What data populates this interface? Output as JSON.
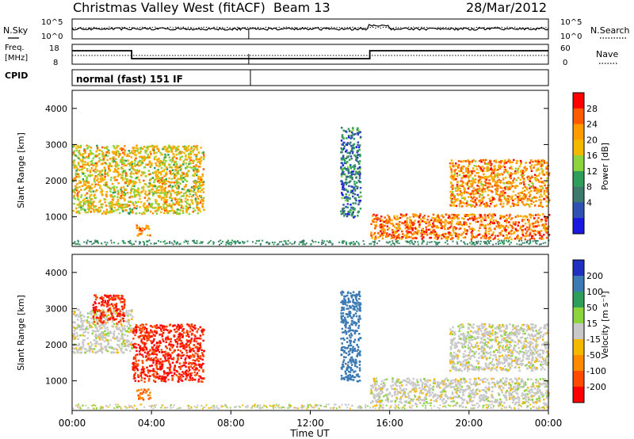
{
  "header": {
    "station": "Christmas Valley West (fitACF)",
    "beam": "Beam 13",
    "date": "28/Mar/2012"
  },
  "noise_panel": {
    "left_label": "N.Sky",
    "left_ticks": [
      "10^5",
      "10^0"
    ],
    "right_label": "N.Search",
    "right_ticks": [
      "10^5",
      "10^0"
    ],
    "legend_solid": "solid line",
    "legend_dotted": "dotted line"
  },
  "freq_panel": {
    "left_label_1": "Freq.",
    "left_label_2": "[MHz]",
    "left_ticks": [
      "18",
      "8"
    ],
    "right_label": "Nave",
    "right_ticks": [
      "60",
      "0"
    ]
  },
  "cpid": {
    "label": "CPID",
    "value": "normal (fast) 151 IF"
  },
  "power_colorbar": {
    "label": "Power [dB]",
    "ticks": [
      "28",
      "24",
      "20",
      "16",
      "12",
      "8",
      "4"
    ],
    "colors": [
      "#ff0000",
      "#ff5a00",
      "#ff9a00",
      "#f5b800",
      "#8cd43c",
      "#2e9e5a",
      "#3c7a6e",
      "#3050b4",
      "#1818e0"
    ]
  },
  "velocity_colorbar": {
    "label": "Velocity [m s⁻¹]",
    "ticks": [
      "200",
      "100",
      "50",
      "15",
      "-15",
      "-50",
      "-100",
      "-200"
    ],
    "colors": [
      "#2030c0",
      "#3c7ab4",
      "#2e9e5a",
      "#8cd43c",
      "#c8c8c8",
      "#f5b800",
      "#ff8a00",
      "#ff4a00",
      "#ff0000"
    ]
  },
  "x_axis": {
    "label": "Time UT",
    "ticks": [
      "00:00",
      "04:00",
      "08:00",
      "12:00",
      "16:00",
      "20:00",
      "00:00"
    ]
  },
  "chart_data": [
    {
      "type": "heatmap",
      "title": "",
      "xlabel": "Time UT",
      "ylabel": "Slant Range [km]",
      "x_range_hours": [
        0,
        24
      ],
      "ylim": [
        180,
        4500
      ],
      "yticks": [
        1000,
        2000,
        3000,
        4000
      ],
      "color_quantity": "Power [dB]",
      "regions": [
        {
          "t_start": 0.0,
          "t_end": 6.6,
          "range_start": 1100,
          "range_end": 3000,
          "power_db": 20
        },
        {
          "t_start": 3.2,
          "t_end": 3.9,
          "range_start": 500,
          "range_end": 800,
          "power_db": 24
        },
        {
          "t_start": 13.5,
          "t_end": 14.5,
          "range_start": 1000,
          "range_end": 3500,
          "power_db": 8
        },
        {
          "t_start": 15.0,
          "t_end": 24.0,
          "range_start": 400,
          "range_end": 1100,
          "power_db": 26
        },
        {
          "t_start": 19.0,
          "t_end": 24.0,
          "range_start": 1300,
          "range_end": 2600,
          "power_db": 24
        }
      ]
    },
    {
      "type": "heatmap",
      "title": "",
      "xlabel": "Time UT",
      "ylabel": "Slant Range [km]",
      "x_range_hours": [
        0,
        24
      ],
      "ylim": [
        180,
        4500
      ],
      "yticks": [
        1000,
        2000,
        3000,
        4000
      ],
      "color_quantity": "Velocity [m s-1]",
      "regions": [
        {
          "t_start": 0.0,
          "t_end": 3.0,
          "range_start": 1800,
          "range_end": 3000,
          "velocity": 0
        },
        {
          "t_start": 1.0,
          "t_end": 2.6,
          "range_start": 2600,
          "range_end": 3400,
          "velocity": -200
        },
        {
          "t_start": 3.0,
          "t_end": 6.6,
          "range_start": 1000,
          "range_end": 2600,
          "velocity": -200
        },
        {
          "t_start": 3.2,
          "t_end": 3.9,
          "range_start": 500,
          "range_end": 800,
          "velocity": -100
        },
        {
          "t_start": 13.5,
          "t_end": 14.5,
          "range_start": 1000,
          "range_end": 3500,
          "velocity": 150
        },
        {
          "t_start": 15.0,
          "t_end": 24.0,
          "range_start": 400,
          "range_end": 1100,
          "velocity": 0
        },
        {
          "t_start": 19.0,
          "t_end": 24.0,
          "range_start": 1300,
          "range_end": 2600,
          "velocity": 0
        }
      ]
    }
  ]
}
